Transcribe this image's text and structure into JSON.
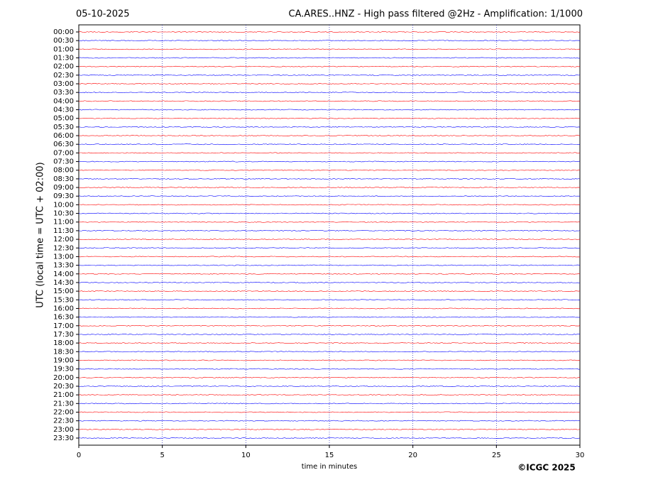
{
  "chart_data": {
    "type": "helicorder",
    "date": "05-10-2025",
    "title": "CA.ARES..HNZ - High pass filtered @2Hz - Amplification: 1/1000",
    "ylabel": "UTC (local time = UTC + 02:00)",
    "xlabel": "time in minutes",
    "copyright": "©ICGC 2025",
    "categories": [
      "00:00",
      "00:30",
      "01:00",
      "01:30",
      "02:00",
      "02:30",
      "03:00",
      "03:30",
      "04:00",
      "04:30",
      "05:00",
      "05:30",
      "06:00",
      "06:30",
      "07:00",
      "07:30",
      "08:00",
      "08:30",
      "09:00",
      "09:30",
      "10:00",
      "10:30",
      "11:00",
      "11:30",
      "12:00",
      "12:30",
      "13:00",
      "13:30",
      "14:00",
      "14:30",
      "15:00",
      "15:30",
      "16:00",
      "16:30",
      "17:00",
      "17:30",
      "18:00",
      "18:30",
      "19:00",
      "19:30",
      "20:00",
      "20:30",
      "21:00",
      "21:30",
      "22:00",
      "22:30",
      "23:00",
      "23:30"
    ],
    "colors": [
      "#ff0000",
      "#0000ff"
    ],
    "xlim": [
      0,
      30
    ],
    "xticks": [
      0,
      5,
      10,
      15,
      20,
      25,
      30
    ],
    "grid": true
  }
}
